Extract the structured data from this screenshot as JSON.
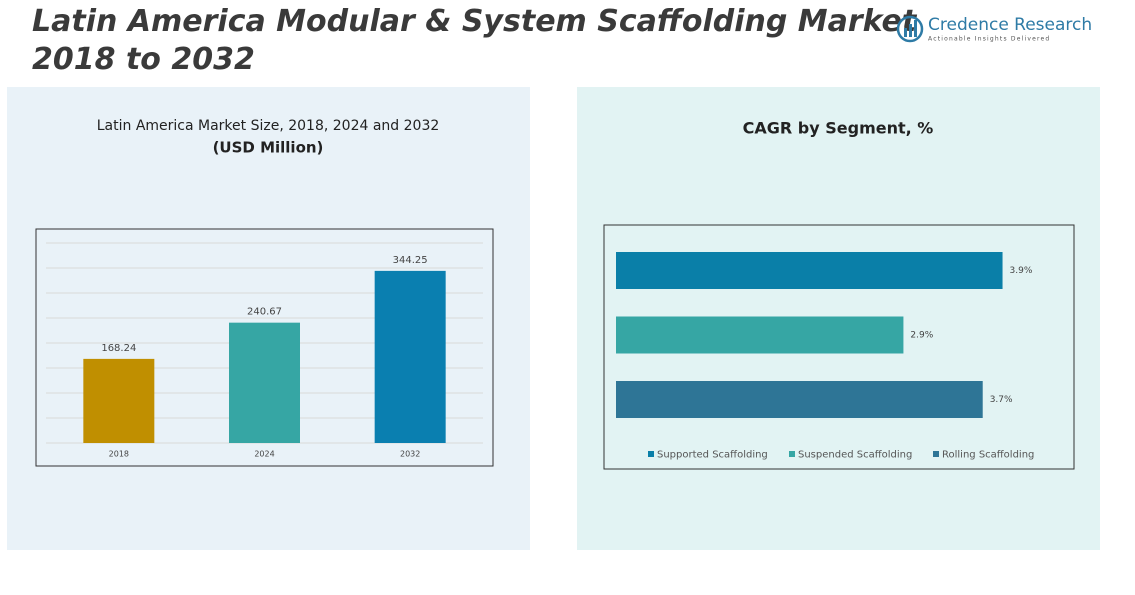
{
  "header": {
    "title_lines": [
      "Latin America Modular & System Scaffolding Market",
      "2018 to 2032"
    ],
    "logo": {
      "name": "Credence Research",
      "tagline": "Actionable Insights Delivered"
    }
  },
  "chart_data": [
    {
      "type": "bar",
      "title": "Latin America Market Size, 2018, 2024 and 2032",
      "subtitle": "(USD Million)",
      "categories": [
        "2018",
        "2024",
        "2032"
      ],
      "values": [
        168.24,
        240.67,
        344.25
      ],
      "colors": [
        "#c08f00",
        "#36a6a4",
        "#0a7fb0"
      ],
      "ylim": [
        0,
        400
      ],
      "yticks": [
        0,
        50,
        100,
        150,
        200,
        250,
        300,
        350,
        400
      ],
      "grid": true
    },
    {
      "type": "hbar",
      "title": "CAGR by Segment, %",
      "categories": [
        "Supported Scaffolding",
        "Suspended Scaffolding",
        "Rolling Scaffolding"
      ],
      "values": [
        3.9,
        2.9,
        3.7
      ],
      "value_labels": [
        "3.9%",
        "2.9%",
        "3.7%"
      ],
      "colors": [
        "#0a7fa8",
        "#36a6a4",
        "#2e7596"
      ],
      "xlim": [
        0,
        4.5
      ],
      "legend": "bottom"
    }
  ]
}
